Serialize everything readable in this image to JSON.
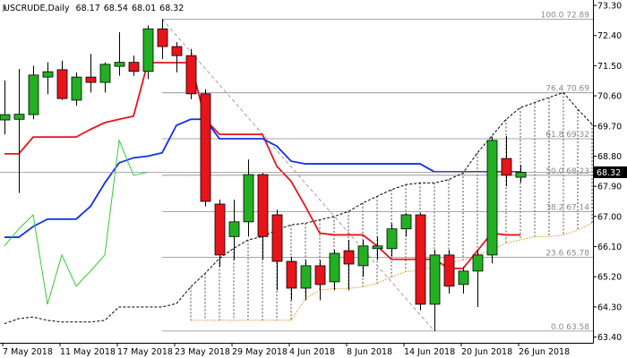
{
  "chart_data": {
    "type": "candlestick",
    "title": "USCRUDE,Daily",
    "categories": [
      "7 May 2018",
      null,
      null,
      null,
      "11 May 2018",
      null,
      null,
      null,
      "17 May 2018",
      null,
      null,
      null,
      "23 May 2018",
      null,
      null,
      null,
      "29 May 2018",
      null,
      null,
      null,
      "4 Jun 2018",
      null,
      null,
      null,
      "8 Jun 2018",
      null,
      null,
      null,
      "14 Jun 2018",
      null,
      null,
      null,
      "20 Jun 2018",
      null,
      null,
      null,
      "26 Jun 2018",
      null,
      null,
      null,
      null,
      null
    ],
    "open": [
      69.88,
      69.9,
      70.04,
      71.16,
      71.38,
      70.47,
      71.16,
      71.0,
      71.48,
      71.6,
      71.33,
      72.6,
      72.07,
      71.8,
      70.66,
      67.37,
      66.4,
      66.84,
      68.25,
      67.05,
      65.66,
      64.86,
      65.53,
      65.05,
      65.98,
      65.53,
      66.04,
      66.04,
      66.63,
      67.05,
      64.38,
      65.85,
      64.97,
      65.37,
      65.85,
      68.73,
      68.17,
      null,
      null,
      null,
      null,
      null
    ],
    "high": [
      71.06,
      71.4,
      71.5,
      71.6,
      71.65,
      71.3,
      71.85,
      71.6,
      72.5,
      71.8,
      72.7,
      72.89,
      72.2,
      72.0,
      70.8,
      67.5,
      67.5,
      68.7,
      68.3,
      67.2,
      65.8,
      65.7,
      65.7,
      66.0,
      66.3,
      66.3,
      66.4,
      66.8,
      67.1,
      67.1,
      66.0,
      66.0,
      65.5,
      66.0,
      69.37,
      69.4,
      68.54,
      null,
      null,
      null,
      null,
      null
    ],
    "low": [
      69.45,
      67.7,
      69.9,
      70.65,
      70.48,
      70.3,
      70.7,
      70.7,
      71.2,
      71.2,
      71.1,
      71.7,
      71.3,
      70.5,
      67.3,
      65.5,
      65.7,
      66.4,
      65.7,
      64.8,
      64.5,
      64.5,
      64.5,
      64.8,
      64.8,
      65.2,
      65.7,
      65.8,
      66.4,
      64.2,
      63.58,
      64.7,
      64.7,
      64.3,
      65.6,
      67.9,
      68.01,
      null,
      null,
      null,
      null,
      null
    ],
    "close": [
      70.04,
      70.05,
      71.22,
      71.32,
      70.52,
      71.16,
      71.0,
      71.54,
      71.6,
      71.33,
      72.6,
      72.07,
      71.8,
      70.66,
      67.45,
      65.85,
      66.84,
      68.25,
      66.4,
      65.66,
      64.86,
      65.53,
      64.97,
      65.9,
      65.58,
      66.12,
      66.12,
      66.63,
      67.05,
      64.38,
      65.85,
      64.92,
      65.37,
      65.85,
      69.27,
      68.23,
      68.32,
      null,
      null,
      null,
      null,
      null
    ],
    "up_color": "#22b022",
    "down_color": "#e8141a",
    "overlays": [
      {
        "color": "#e8141a",
        "style": "solid",
        "values": [
          68.87,
          68.87,
          69.37,
          69.37,
          69.37,
          69.37,
          69.6,
          69.8,
          69.9,
          69.99,
          71.59,
          71.59,
          71.59,
          71.59,
          69.9,
          69.45,
          69.45,
          69.45,
          69.45,
          68.5,
          68.05,
          67.3,
          66.5,
          66.45,
          66.45,
          66.45,
          66.12,
          65.72,
          65.72,
          65.72,
          65.72,
          65.45,
          65.45,
          65.98,
          66.5,
          66.45,
          66.45,
          null,
          null,
          null,
          null,
          null
        ]
      },
      {
        "color": "#1030e8",
        "style": "solid",
        "values": [
          66.38,
          66.38,
          66.7,
          66.92,
          66.92,
          66.92,
          67.3,
          68.0,
          68.6,
          68.75,
          68.8,
          68.9,
          69.72,
          69.9,
          69.9,
          69.32,
          69.32,
          69.32,
          69.32,
          69.1,
          68.65,
          68.57,
          68.57,
          68.57,
          68.57,
          68.57,
          68.57,
          68.57,
          68.57,
          68.57,
          68.33,
          68.33,
          68.33,
          68.33,
          68.33,
          68.33,
          68.33,
          null,
          null,
          null,
          null,
          null
        ]
      },
      {
        "color": "#33cc33",
        "style": "thin",
        "values": [
          66.12,
          66.63,
          67.05,
          64.38,
          65.85,
          64.92,
          65.37,
          65.85,
          69.27,
          68.23,
          68.32,
          null,
          null,
          null,
          null,
          null,
          null,
          null,
          null,
          null,
          null,
          null,
          null,
          null,
          null,
          null,
          null,
          null,
          null,
          null,
          null,
          null,
          null,
          null,
          null,
          null,
          null,
          null,
          null,
          null,
          null,
          null
        ]
      },
      {
        "color": "#000000",
        "style": "dashed",
        "values": [
          63.8,
          63.95,
          64.0,
          63.9,
          63.85,
          63.85,
          63.85,
          63.9,
          64.3,
          64.3,
          64.3,
          64.3,
          64.4,
          64.9,
          65.3,
          65.75,
          66.05,
          66.3,
          66.4,
          66.6,
          66.75,
          66.8,
          66.9,
          67.0,
          67.15,
          67.4,
          67.6,
          67.8,
          67.95,
          68.0,
          68.0,
          68.1,
          68.3,
          68.9,
          69.4,
          69.9,
          70.25,
          70.4,
          70.55,
          70.7,
          70.2,
          69.75
        ]
      },
      {
        "color": "#e8901a",
        "style": "dotted",
        "values": [
          null,
          null,
          null,
          null,
          null,
          null,
          null,
          null,
          null,
          null,
          null,
          null,
          null,
          63.9,
          63.9,
          63.9,
          63.9,
          63.9,
          63.9,
          63.9,
          63.9,
          64.55,
          64.8,
          64.85,
          64.85,
          64.9,
          65.0,
          65.2,
          65.35,
          65.4,
          65.5,
          65.6,
          65.7,
          65.85,
          66.0,
          66.2,
          66.3,
          66.4,
          66.4,
          66.45,
          66.6,
          66.8
        ]
      }
    ],
    "fibo": {
      "color": "#8a8a8a",
      "x": [
        11,
        30
      ],
      "levels": [
        {
          "value": 72.89,
          "label": "100.0 72.89"
        },
        {
          "value": 70.69,
          "label": "76.4 70.69"
        },
        {
          "value": 69.32,
          "label": "61.8 69.32"
        },
        {
          "value": 68.23,
          "label": "50.0 68.23"
        },
        {
          "value": 67.14,
          "label": "38.2 67.14"
        },
        {
          "value": 65.78,
          "label": "23.6 65.78"
        },
        {
          "value": 63.58,
          "label": "0.0 63.58"
        }
      ]
    },
    "ylim": [
      63.23,
      73.46
    ],
    "yticks": [
      {
        "value": 73.3,
        "label": "73.30"
      },
      {
        "value": 72.4,
        "label": "72.40"
      },
      {
        "value": 71.5,
        "label": "71.50"
      },
      {
        "value": 70.6,
        "label": "70.60"
      },
      {
        "value": 69.7,
        "label": "69.70"
      },
      {
        "value": 68.8,
        "label": "68.80"
      },
      {
        "value": 67.9,
        "label": "67.90"
      },
      {
        "value": 67.0,
        "label": "67.00"
      },
      {
        "value": 66.1,
        "label": "66.10"
      },
      {
        "value": 65.2,
        "label": "65.20"
      },
      {
        "value": 64.3,
        "label": "64.30"
      },
      {
        "value": 63.4,
        "label": "63.40"
      }
    ]
  }
}
